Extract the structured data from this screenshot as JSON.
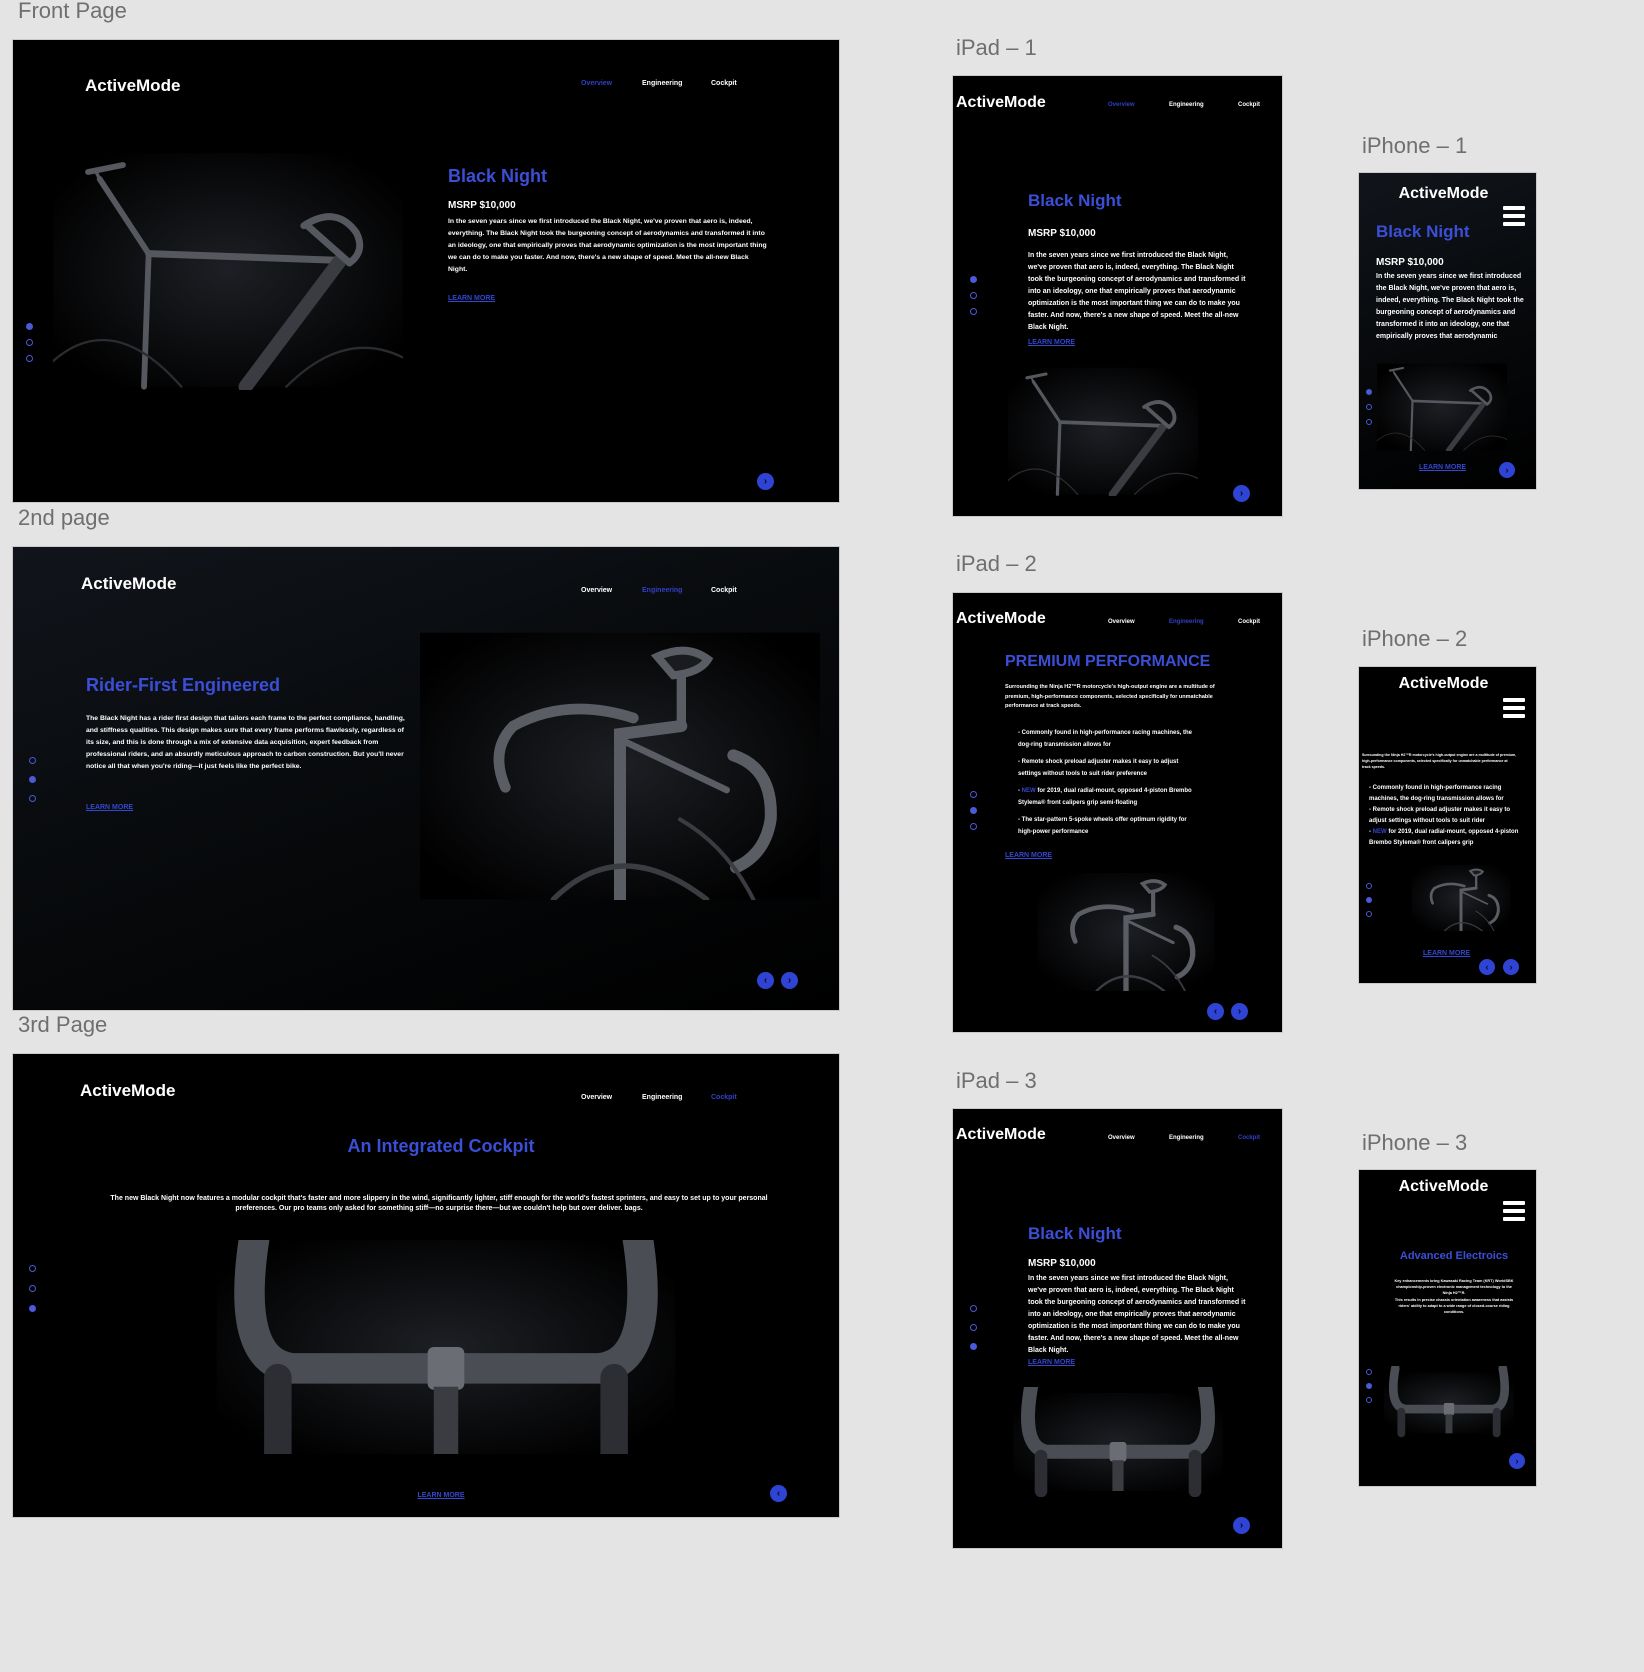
{
  "brand": "ActiveMode",
  "nav": [
    "Overview",
    "Engineering",
    "Cockpit"
  ],
  "labels": {
    "front": "Front Page",
    "second": "2nd page",
    "third": "3rd Page",
    "ipad1": "iPad – 1",
    "ipad2": "iPad – 2",
    "ipad3": "iPad – 3",
    "iphone1": "iPhone – 1",
    "iphone2": "iPhone – 2",
    "iphone3": "iPhone – 3"
  },
  "learn_more": "LEARN MORE",
  "overview": {
    "title": "Black Night",
    "msrp": "MSRP $10,000",
    "body": "In the seven years since we first introduced the Black Night, we've proven that aero is, indeed, everything. The Black Night took the burgeoning concept of aerodynamics and transformed it into an ideology, one that empirically proves that aerodynamic optimization is the most important thing we can do to make you faster. And now, there's a new shape of speed. Meet the all-new Black Night.",
    "body_short": "In the seven years since we first introduced the Black Night, we've proven that aero is, indeed, everything. The Black Night took the burgeoning concept of aerodynamics and transformed it into an ideology, one that empirically proves that aerodynamic"
  },
  "engineering": {
    "title": "Rider-First Engineered",
    "body": "The Black Night has a rider first design that tailors each frame to the perfect compliance, handling, and stiffness qualities. This design makes sure that every frame performs flawlessly, regardless of its size, and this is done through a mix of extensive data acquisition, expert feedback from professional riders, and an absurdly meticulous approach to carbon construction. But you'll never notice all that when you're riding—it just feels like the perfect bike."
  },
  "performance": {
    "title": "PREMIUM PERFORMANCE",
    "intro": "Surrounding the Ninja H2™R motorcycle's high-output engine are a multitude of premium, high-performance components, selected specifically for unmatchable performance at track speeds.",
    "b1": "- Commonly found in high-performance racing machines, the dog-ring transmission allows for",
    "b2": "- Remote shock preload adjuster makes it easy to adjust settings without tools to suit rider preference",
    "b2_short": "- Remote shock preload adjuster makes it easy to adjust settings without tools to suit rider",
    "b3_prefix": "- ",
    "b3_new": "NEW",
    "b3_rest": " for 2019, dual radial-mount, opposed 4-piston Brembo Stylema® front calipers grip semi-floating",
    "b3_rest_short": " for 2019, dual radial-mount, opposed 4-piston Brembo Stylema® front calipers grip",
    "b4": "- The star-pattern 5-spoke wheels offer optimum rigidity for high-power performance"
  },
  "cockpit": {
    "title": "An Integrated Cockpit",
    "body": "The new Black Night now features a modular cockpit that's faster and more slippery in the wind, significantly lighter, stiff enough for the world's fastest sprinters, and easy to set up to your personal preferences. Our pro teams only asked for something stiff—no surprise there—but we couldn't help but over deliver. bags."
  },
  "electronics": {
    "title": "Advanced Electroics",
    "p1": "Key enhancements bring Kawasaki Racing Team (KRT) WorldSBK championship-proven electronic management technology to the Ninja H2™R.",
    "p2": "This results in precise chassis orientation awareness that assists riders' ability to adapt to a wide range of closed-course riding conditions."
  },
  "colors": {
    "accent": "#3b4fd6",
    "background": "#000000",
    "canvas": "#e4e4e4"
  },
  "icons": {
    "next": "chevron-right-icon",
    "prev": "chevron-left-icon",
    "menu": "hamburger-menu-icon"
  }
}
